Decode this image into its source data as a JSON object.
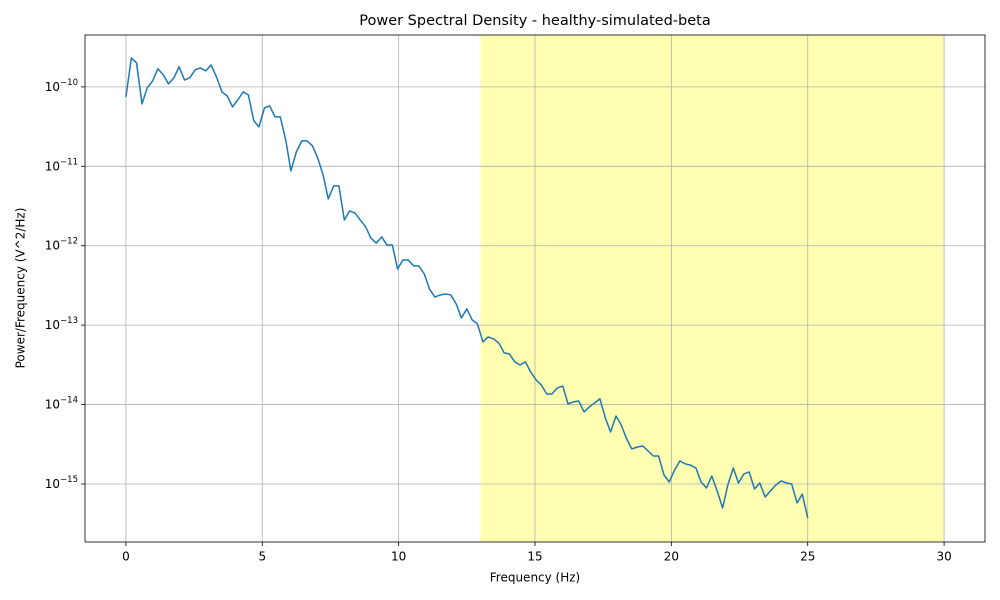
{
  "chart_data": {
    "type": "line",
    "title": "Power Spectral Density - healthy-simulated-beta",
    "xlabel": "Frequency (Hz)",
    "ylabel": "Power/Frequency (V^2/Hz)",
    "x": [
      0,
      0.2,
      0.39,
      0.59,
      0.78,
      0.98,
      1.17,
      1.37,
      1.56,
      1.76,
      1.95,
      2.15,
      2.34,
      2.54,
      2.73,
      2.93,
      3.12,
      3.32,
      3.52,
      3.71,
      3.91,
      4.1,
      4.3,
      4.49,
      4.69,
      4.88,
      5.08,
      5.27,
      5.47,
      5.66,
      5.86,
      6.05,
      6.25,
      6.45,
      6.64,
      6.84,
      7.03,
      7.23,
      7.42,
      7.62,
      7.81,
      8.01,
      8.2,
      8.4,
      8.59,
      8.79,
      8.98,
      9.18,
      9.38,
      9.57,
      9.77,
      9.96,
      10.16,
      10.35,
      10.55,
      10.74,
      10.94,
      11.13,
      11.33,
      11.52,
      11.72,
      11.91,
      12.11,
      12.3,
      12.5,
      12.7,
      12.89,
      13.09,
      13.28,
      13.48,
      13.67,
      13.87,
      14.06,
      14.26,
      14.45,
      14.65,
      14.84,
      15.04,
      15.23,
      15.43,
      15.62,
      15.82,
      16.02,
      16.21,
      16.41,
      16.6,
      16.8,
      16.99,
      17.19,
      17.38,
      17.58,
      17.77,
      17.97,
      18.16,
      18.36,
      18.55,
      18.75,
      18.95,
      19.14,
      19.34,
      19.53,
      19.73,
      19.92,
      20.12,
      20.31,
      20.51,
      20.7,
      20.9,
      21.09,
      21.29,
      21.48,
      21.68,
      21.88,
      22.07,
      22.27,
      22.46,
      22.66,
      22.85,
      23.05,
      23.24,
      23.44,
      23.63,
      23.83,
      24.02,
      24.22,
      24.41,
      24.61,
      24.8,
      25
    ],
    "series": [
      {
        "color": "#1f77b4",
        "values": [
          7.48e-11,
          2.32e-10,
          2e-10,
          6.11e-11,
          9.7e-11,
          1.19e-10,
          1.69e-10,
          1.42e-10,
          1.09e-10,
          1.3e-10,
          1.79e-10,
          1.22e-10,
          1.3e-10,
          1.64e-10,
          1.73e-10,
          1.59e-10,
          1.89e-10,
          1.34e-10,
          8.65e-11,
          7.7e-11,
          5.6e-11,
          6.86e-11,
          8.65e-11,
          7.93e-11,
          3.73e-11,
          3.13e-11,
          5.44e-11,
          5.76e-11,
          4.19e-11,
          4.19e-11,
          2.15e-11,
          8.75e-12,
          1.52e-11,
          2.09e-11,
          2.09e-11,
          1.81e-11,
          1.28e-11,
          7.8e-12,
          3.88e-12,
          5.66e-12,
          5.66e-12,
          2.11e-12,
          2.74e-12,
          2.59e-12,
          2.11e-12,
          1.73e-12,
          1.25e-12,
          1.08e-12,
          1.29e-12,
          1.02e-12,
          1.02e-12,
          5.1e-13,
          6.62e-13,
          6.62e-13,
          5.57e-13,
          5.57e-13,
          4.42e-13,
          2.86e-13,
          2.26e-13,
          2.4e-13,
          2.47e-13,
          2.4e-13,
          1.85e-13,
          1.23e-13,
          1.6e-13,
          1.16e-13,
          1.04e-13,
          6.14e-14,
          7.1e-14,
          6.7e-14,
          5.97e-14,
          4.47e-14,
          4.34e-14,
          3.44e-14,
          3.15e-14,
          3.44e-14,
          2.58e-14,
          2.04e-14,
          1.77e-14,
          1.36e-14,
          1.36e-14,
          1.62e-14,
          1.71e-14,
          1.02e-14,
          1.08e-14,
          1.11e-14,
          8.07e-15,
          9.33e-15,
          1.05e-14,
          1.18e-14,
          6.78e-15,
          4.52e-15,
          7.18e-15,
          5.53e-15,
          3.69e-15,
          2.76e-15,
          2.92e-15,
          3.01e-15,
          2.61e-15,
          2.25e-15,
          2.25e-15,
          1.3e-15,
          1.06e-15,
          1.5e-15,
          1.95e-15,
          1.79e-15,
          1.73e-15,
          1.59e-15,
          1.06e-15,
          8.9e-16,
          1.26e-15,
          8.17e-16,
          4.99e-16,
          9.7e-16,
          1.59e-15,
          1.03e-15,
          1.34e-15,
          1.42e-15,
          8.65e-16,
          1.03e-15,
          6.86e-16,
          8.17e-16,
          9.7e-16,
          1.09e-15,
          1.03e-15,
          1e-15,
          5.77e-16,
          7.48e-16,
          3.73e-16
        ]
      }
    ],
    "span": {
      "range": [
        13,
        30
      ],
      "color": "#ffffb2"
    },
    "xlim": [
      -1.5,
      31.5
    ],
    "xticks": [
      0,
      5,
      10,
      15,
      20,
      25,
      30
    ],
    "ylim": [
      1.86e-16,
      4.5e-10
    ],
    "yscale": "log",
    "yticks": [
      {
        "value": 1e-15,
        "label": "10^−15"
      },
      {
        "value": 1e-14,
        "label": "10^−14"
      },
      {
        "value": 1e-13,
        "label": "10^−13"
      },
      {
        "value": 1e-12,
        "label": "10^−12"
      },
      {
        "value": 1e-11,
        "label": "10^−11"
      },
      {
        "value": 1e-10,
        "label": "10^−10"
      }
    ],
    "grid": true
  }
}
